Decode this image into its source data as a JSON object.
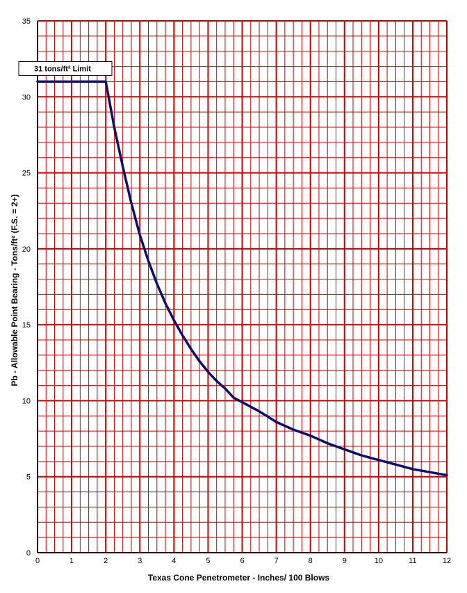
{
  "chart_data": {
    "type": "line",
    "title": "",
    "xlabel": "Texas Cone Penetrometer - Inches/ 100 Blows",
    "ylabel": "Pb - Allowable Point Bearing - Tons/ft² (F.S. = 2+)",
    "xlim": [
      0,
      12
    ],
    "ylim": [
      0,
      35
    ],
    "x_ticks": [
      0,
      1,
      2,
      3,
      4,
      5,
      6,
      7,
      8,
      9,
      10,
      11,
      12
    ],
    "y_ticks": [
      0,
      5,
      10,
      15,
      20,
      25,
      30,
      35
    ],
    "minor_grid_x": 0.25,
    "minor_grid_y": 1,
    "grid": true,
    "grid_color": "#cc0000",
    "line_color": "#0d0d6b",
    "series": [
      {
        "x": [
          0,
          2.0,
          2.25,
          2.5,
          2.75,
          3.0,
          3.25,
          3.5,
          3.75,
          4.0,
          4.25,
          4.5,
          4.75,
          5.0,
          5.25,
          5.5,
          5.75,
          6.0,
          6.5,
          7.0,
          7.5,
          8.0,
          8.5,
          9.0,
          9.5,
          10.0,
          10.5,
          11.0,
          11.5,
          12.0
        ],
        "y": [
          31.0,
          31.0,
          28.0,
          25.4,
          23.0,
          20.9,
          19.2,
          17.7,
          16.4,
          15.3,
          14.3,
          13.4,
          12.6,
          11.9,
          11.3,
          10.8,
          10.2,
          9.9,
          9.3,
          8.6,
          8.1,
          7.7,
          7.2,
          6.8,
          6.4,
          6.1,
          5.8,
          5.5,
          5.3,
          5.1
        ]
      }
    ],
    "annotations": [
      {
        "text": "31 tons/ft² Limit",
        "y": 31
      }
    ],
    "legend": "none"
  }
}
